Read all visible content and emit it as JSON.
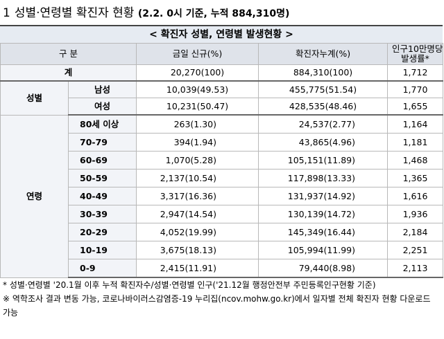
{
  "heading": {
    "number": "1",
    "title": "성별·연령별 확진자 현황",
    "subtitle": "(2.2. 0시 기준, 누적 884,310명)"
  },
  "table_title": "< 확진자 성별, 연령별 발생현황 >",
  "columns": {
    "category": "구 분",
    "new_cases": "금일 신규(%)",
    "cumulative": "확진자누계(%)",
    "rate_line1": "인구10만명당",
    "rate_line2": "발생률*"
  },
  "total": {
    "label": "계",
    "new": "20,270(100)",
    "cum": "884,310(100)",
    "rate": "1,712"
  },
  "gender": {
    "label": "성별",
    "rows": [
      {
        "label": "남성",
        "new": "10,039(49.53)",
        "cum": "455,775(51.54)",
        "rate": "1,770"
      },
      {
        "label": "여성",
        "new": "10,231(50.47)",
        "cum": "428,535(48.46)",
        "rate": "1,655"
      }
    ]
  },
  "age": {
    "label": "연령",
    "rows": [
      {
        "label": "80세 이상",
        "new": "263(1.30)",
        "cum": "24,537(2.77)",
        "rate": "1,164"
      },
      {
        "label": "70-79",
        "new": "394(1.94)",
        "cum": "43,865(4.96)",
        "rate": "1,181"
      },
      {
        "label": "60-69",
        "new": "1,070(5.28)",
        "cum": "105,151(11.89)",
        "rate": "1,468"
      },
      {
        "label": "50-59",
        "new": "2,137(10.54)",
        "cum": "117,898(13.33)",
        "rate": "1,365"
      },
      {
        "label": "40-49",
        "new": "3,317(16.36)",
        "cum": "131,937(14.92)",
        "rate": "1,616"
      },
      {
        "label": "30-39",
        "new": "2,947(14.54)",
        "cum": "130,139(14.72)",
        "rate": "1,936"
      },
      {
        "label": "20-29",
        "new": "4,052(19.99)",
        "cum": "145,349(16.44)",
        "rate": "2,184"
      },
      {
        "label": "10-19",
        "new": "3,675(18.13)",
        "cum": "105,994(11.99)",
        "rate": "2,251"
      },
      {
        "label": "0-9",
        "new": "2,415(11.91)",
        "cum": "79,440(8.98)",
        "rate": "2,113"
      }
    ]
  },
  "notes": [
    "* 성별·연령별 '20.1월 이후 누적 확진자수/성별·연령별 인구('21.12월 행정안전부 주민등록인구현황 기준)",
    "※ 역학조사 결과 변동 가능, 코로나바이러스감염증-19 누리집(ncov.mohw.go.kr)에서 일자별 전체 확진자 현황 다운로드 가능"
  ]
}
